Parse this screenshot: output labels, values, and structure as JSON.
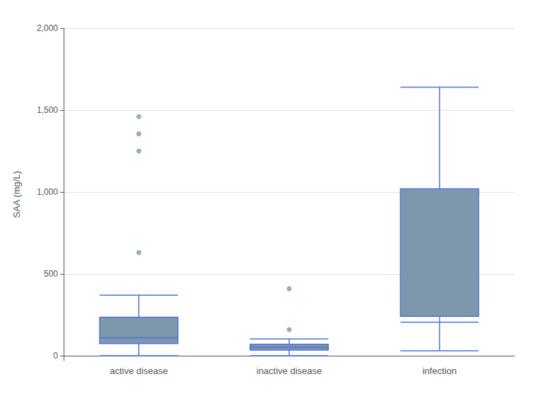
{
  "chart_data": {
    "type": "boxplot",
    "categories": [
      "active disease",
      "inactive disease",
      "infection"
    ],
    "ylabel": "SAA (mg/L)",
    "ylim": [
      -30,
      2000
    ],
    "yticks": [
      0,
      500,
      {
        "value": 1000,
        "label": "1,000"
      },
      {
        "value": 1500,
        "label": "1,500"
      },
      {
        "value": 2000,
        "label": "2,000"
      }
    ],
    "grid": true,
    "color": "#7d98aa",
    "boxes": [
      {
        "q1": 75,
        "median": 110,
        "q3": 235,
        "whisker_low": 0,
        "whisker_high": 370,
        "outliers": [
          630,
          1250,
          1355,
          1460
        ]
      },
      {
        "q1": 35,
        "median": 52,
        "q3": 70,
        "whisker_low": 0,
        "whisker_high": 103,
        "outliers": [
          160,
          410
        ]
      },
      {
        "q1": 240,
        "median": 205,
        "q3": 1020,
        "whisker_low": 30,
        "whisker_high": 1640,
        "outliers": []
      }
    ]
  }
}
